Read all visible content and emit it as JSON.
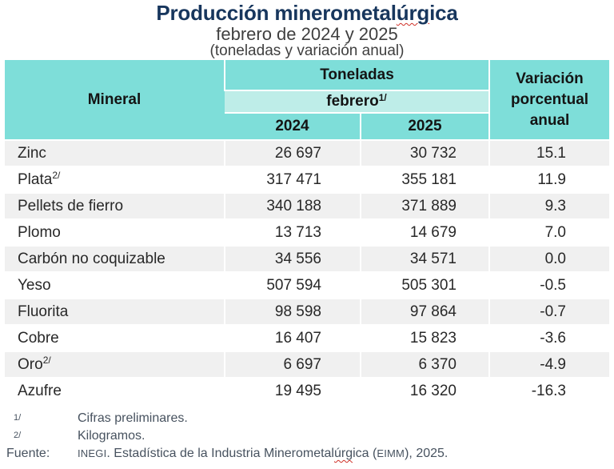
{
  "header": {
    "title_pre": "Producción minerometal",
    "title_squiggle": "úrg",
    "title_post": "ica",
    "subtitle": "febrero de 2024 y 2025",
    "units": "(toneladas y variación anual)"
  },
  "table": {
    "header": {
      "mineral": "Mineral",
      "tonnes": "Toneladas",
      "month": "febrero",
      "month_sup": "1/",
      "year1": "2024",
      "year2": "2025",
      "variation": "Variación porcentual anual"
    },
    "rows": [
      {
        "mineral": "Zinc",
        "sup": "",
        "y2024": "26 697",
        "y2025": "30 732",
        "variation": "15.1"
      },
      {
        "mineral": "Plata",
        "sup": "2/",
        "y2024": "317 471",
        "y2025": "355 181",
        "variation": "11.9"
      },
      {
        "mineral": "Pellets de fierro",
        "sup": "",
        "y2024": "340 188",
        "y2025": "371 889",
        "variation": "9.3"
      },
      {
        "mineral": "Plomo",
        "sup": "",
        "y2024": "13 713",
        "y2025": "14 679",
        "variation": "7.0"
      },
      {
        "mineral": "Carbón no coquizable",
        "sup": "",
        "y2024": "34 556",
        "y2025": "34 571",
        "variation": "0.0"
      },
      {
        "mineral": "Yeso",
        "sup": "",
        "y2024": "507 594",
        "y2025": "505 301",
        "variation": "-0.5"
      },
      {
        "mineral": "Fluorita",
        "sup": "",
        "y2024": "98 598",
        "y2025": "97 864",
        "variation": "-0.7"
      },
      {
        "mineral": "Cobre",
        "sup": "",
        "y2024": "16 407",
        "y2025": "15 823",
        "variation": "-3.6"
      },
      {
        "mineral": "Oro",
        "sup": "2/",
        "y2024": "6 697",
        "y2025": "6 370",
        "variation": "-4.9"
      },
      {
        "mineral": "Azufre",
        "sup": "",
        "y2024": "19 495",
        "y2025": "16 320",
        "variation": "-16.3"
      }
    ]
  },
  "footnotes": [
    {
      "marker": "1/",
      "text": "Cifras preliminares."
    },
    {
      "marker": "2/",
      "text": "Kilogramos."
    }
  ],
  "source": {
    "label": "Fuente:",
    "inegi": "INEGI",
    "middle": ". Estadística de la Industria Minerometal",
    "squiggle": "úrg",
    "after_squiggle": "ica (",
    "eimm": "EIMM",
    "tail": "), 2025."
  },
  "colors": {
    "header_teal": "#7EDED9",
    "subheader_teal": "#BEEDE8",
    "row_shade": "#F0F0F0",
    "title_navy": "#17365D",
    "spellcheck_red": "#D03027"
  },
  "chart_data": {
    "type": "table",
    "title": "Producción minerometalúrgica",
    "subtitle": "febrero de 2024 y 2025",
    "units": "(toneladas y variación anual)",
    "columns": [
      "Mineral",
      "Toneladas febrero 2024",
      "Toneladas febrero 2025",
      "Variación porcentual anual"
    ],
    "rows": [
      [
        "Zinc",
        26697,
        30732,
        15.1
      ],
      [
        "Plata (kilogramos)",
        317471,
        355181,
        11.9
      ],
      [
        "Pellets de fierro",
        340188,
        371889,
        9.3
      ],
      [
        "Plomo",
        13713,
        14679,
        7.0
      ],
      [
        "Carbón no coquizable",
        34556,
        34571,
        0.0
      ],
      [
        "Yeso",
        507594,
        505301,
        -0.5
      ],
      [
        "Fluorita",
        98598,
        97864,
        -0.7
      ],
      [
        "Cobre",
        16407,
        15823,
        -3.6
      ],
      [
        "Oro (kilogramos)",
        6697,
        6370,
        -4.9
      ],
      [
        "Azufre",
        19495,
        16320,
        -16.3
      ]
    ],
    "footnotes": [
      "1/ Cifras preliminares.",
      "2/ Kilogramos."
    ],
    "source": "INEGI. Estadística de la Industria Minerometalúrgica (EIMM), 2025."
  }
}
